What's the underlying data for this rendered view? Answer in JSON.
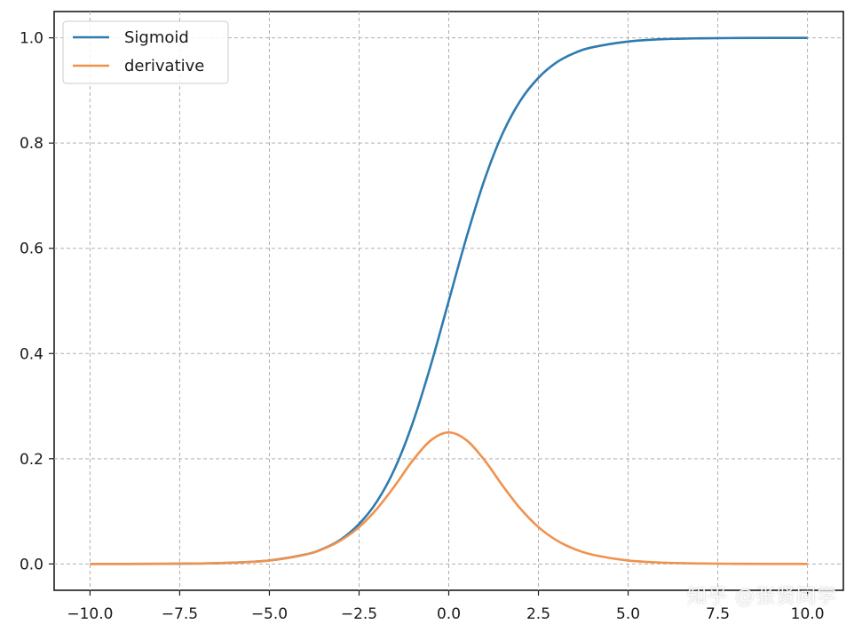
{
  "chart_data": {
    "type": "line",
    "title": "",
    "xlabel": "",
    "ylabel": "",
    "xlim": [
      -11.0,
      11.0
    ],
    "ylim": [
      -0.05,
      1.05
    ],
    "xticks": [
      -10.0,
      -7.5,
      -5.0,
      -2.5,
      0.0,
      2.5,
      5.0,
      7.5,
      10.0
    ],
    "xtick_labels": [
      "−10.0",
      "−7.5",
      "−5.0",
      "−2.5",
      "0.0",
      "2.5",
      "5.0",
      "7.5",
      "10.0"
    ],
    "yticks": [
      0.0,
      0.2,
      0.4,
      0.6,
      0.8,
      1.0
    ],
    "ytick_labels": [
      "0.0",
      "0.2",
      "0.4",
      "0.6",
      "0.8",
      "1.0"
    ],
    "grid": true,
    "legend_position": "top-left",
    "x": [
      -10.0,
      -9.0,
      -8.0,
      -7.0,
      -6.0,
      -5.0,
      -4.0,
      -3.5,
      -3.0,
      -2.5,
      -2.0,
      -1.5,
      -1.0,
      -0.5,
      0.0,
      0.5,
      1.0,
      1.5,
      2.0,
      2.5,
      3.0,
      3.5,
      4.0,
      5.0,
      6.0,
      7.0,
      8.0,
      9.0,
      10.0
    ],
    "series": [
      {
        "name": "Sigmoid",
        "color": "#2d7bb0",
        "values": [
          5e-05,
          0.00012,
          0.00034,
          0.0009,
          0.0025,
          0.0067,
          0.018,
          0.029,
          0.047,
          0.076,
          0.119,
          0.182,
          0.269,
          0.378,
          0.5,
          0.622,
          0.731,
          0.818,
          0.881,
          0.924,
          0.953,
          0.971,
          0.982,
          0.993,
          0.9975,
          0.9991,
          0.99966,
          0.99988,
          0.99995
        ]
      },
      {
        "name": "derivative",
        "color": "#f0924d",
        "values": [
          5e-05,
          0.00012,
          0.00034,
          0.0009,
          0.0025,
          0.0066,
          0.0177,
          0.0285,
          0.0452,
          0.0701,
          0.105,
          0.149,
          0.197,
          0.235,
          0.25,
          0.235,
          0.197,
          0.149,
          0.105,
          0.0701,
          0.0452,
          0.0285,
          0.0177,
          0.0066,
          0.0025,
          0.0009,
          0.00034,
          0.00012,
          5e-05
        ]
      }
    ]
  },
  "watermark": "知乎 @张贤同学"
}
